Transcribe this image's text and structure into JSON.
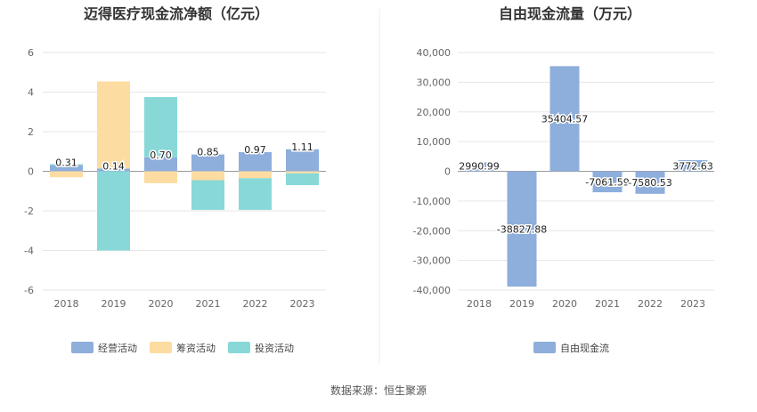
{
  "source_text": "数据来源：恒生聚源",
  "chart_data": [
    {
      "type": "bar",
      "stacked": true,
      "title": "迈得医疗现金流净额（亿元）",
      "categories": [
        "2018",
        "2019",
        "2020",
        "2021",
        "2022",
        "2023"
      ],
      "ylim": [
        -6,
        6
      ],
      "yticks": [
        6,
        4,
        2,
        0,
        -2,
        -4,
        -6
      ],
      "grid": true,
      "legend_position": "bottom",
      "series": [
        {
          "name": "经营活动",
          "color": "#8eaedc",
          "values": [
            0.31,
            0.14,
            0.7,
            0.85,
            0.97,
            1.11
          ],
          "labels": [
            "0.31",
            "0.14",
            "0.70",
            "0.85",
            "0.97",
            "1.11"
          ]
        },
        {
          "name": "筹资活动",
          "color": "#fddca1",
          "values": [
            -0.3,
            4.4,
            -0.6,
            -0.45,
            -0.35,
            -0.1
          ]
        },
        {
          "name": "投资活动",
          "color": "#89d8d8",
          "values": [
            0.05,
            -4.0,
            3.05,
            -1.5,
            -1.6,
            -0.6
          ]
        }
      ]
    },
    {
      "type": "bar",
      "title": "自由现金流量（万元）",
      "categories": [
        "2018",
        "2019",
        "2020",
        "2021",
        "2022",
        "2023"
      ],
      "ylim": [
        -40000,
        40000
      ],
      "yticks": [
        "40,000",
        "30,000",
        "20,000",
        "10,000",
        "0",
        "-10,000",
        "-20,000",
        "-30,000",
        "-40,000"
      ],
      "ytick_values": [
        40000,
        30000,
        20000,
        10000,
        0,
        -10000,
        -20000,
        -30000,
        -40000
      ],
      "grid": true,
      "legend_position": "bottom",
      "series": [
        {
          "name": "自由现金流",
          "color": "#8eaedc",
          "values": [
            2990.99,
            -38827.88,
            35404.57,
            -7061.59,
            -7580.53,
            3772.63
          ],
          "labels": [
            "2990.99",
            "-38827.88",
            "35404.57",
            "-7061.59",
            "-7580.53",
            "3772.63"
          ]
        }
      ]
    }
  ]
}
